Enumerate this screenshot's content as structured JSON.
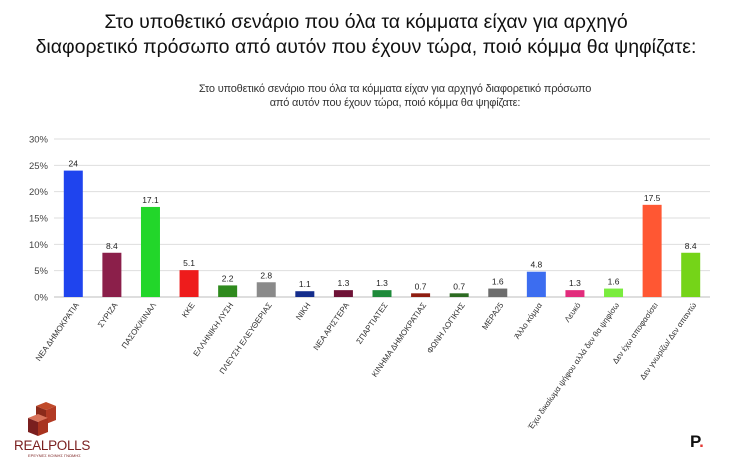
{
  "headline": {
    "line1": "Στο υποθετικό σενάριο που όλα τα κόμματα είχαν για αρχηγό",
    "line2": "διαφορετικό πρόσωπο από αυτόν που έχουν τώρα, ποιό κόμμα θα ψηφίζατε:"
  },
  "chart_data": {
    "type": "bar",
    "title_line1": "Στο υποθετικό σενάριο που όλα τα κόμματα είχαν για αρχηγό διαφορετικό πρόσωπο",
    "title_line2": "από αυτόν που έχουν τώρα, ποιό κόμμα θα ψηφίζατε:",
    "categories": [
      "ΝΕΑ ΔΗΜΟΚΡΑΤΙΑ",
      "ΣΥΡΙΖΑ",
      "ΠΑΣΟΚ/ΚΙΝΑΛ",
      "ΚΚΕ",
      "ΕΛΛΗΝΙΚΗ ΛΥΣΗ",
      "ΠΛΕΥΣΗ ΕΛΕΥΘΕΡΙΑΣ",
      "ΝΙΚΗ",
      "ΝΕΑ ΑΡΙΣΤΕΡΑ",
      "ΣΠΑΡΤΙΑΤΕΣ",
      "ΚΙΝΗΜΑ ΔΗΜΟΚΡΑΤΙΑΣ",
      "ΦΩΝΗ ΛΟΓΙΚΗΣ",
      "ΜΕΡΑ25",
      "Άλλο κόμμα",
      "Λευκό",
      "Έχω δικαίωμα ψήφου αλλά δεν θα ψηφίσω",
      "Δεν έχω αποφασίσει",
      "Δεν γνωρίζω/ Δεν απαντώ"
    ],
    "values": [
      24,
      8.4,
      17.1,
      5.1,
      2.2,
      2.8,
      1.1,
      1.3,
      1.3,
      0.7,
      0.7,
      1.6,
      4.8,
      1.3,
      1.6,
      17.5,
      8.4
    ],
    "value_labels": [
      "24",
      "8.4",
      "17.1",
      "5.1",
      "2.2",
      "2.8",
      "1.1",
      "1.3",
      "1.3",
      "0.7",
      "0.7",
      "1.6",
      "4.8",
      "1.3",
      "1.6",
      "17.5",
      "8.4"
    ],
    "colors": [
      "#1f44ee",
      "#8b1f4a",
      "#22d62a",
      "#ee1c1c",
      "#2f8a1e",
      "#8a8a8a",
      "#142d8c",
      "#6e1236",
      "#1e8a3a",
      "#8e1d10",
      "#2c6b22",
      "#6d6d6d",
      "#3c6df0",
      "#e22c7c",
      "#7aec3e",
      "#ff5733",
      "#75d418"
    ],
    "ylim": [
      0,
      30
    ],
    "yticks": [
      "0%",
      "5%",
      "10%",
      "15%",
      "20%",
      "25%",
      "30%"
    ],
    "ytick_values": [
      0,
      5,
      10,
      15,
      20,
      25,
      30
    ],
    "grid": true,
    "legend": "none"
  },
  "branding": {
    "logo_text": "REALPOLLS",
    "logo_tagline": "ΕΡΕΥΝΕΣ ΚΟΙΝΗΣ ΓΝΩΜΗΣ",
    "publisher_mark": "P",
    "publisher_dot": "."
  }
}
